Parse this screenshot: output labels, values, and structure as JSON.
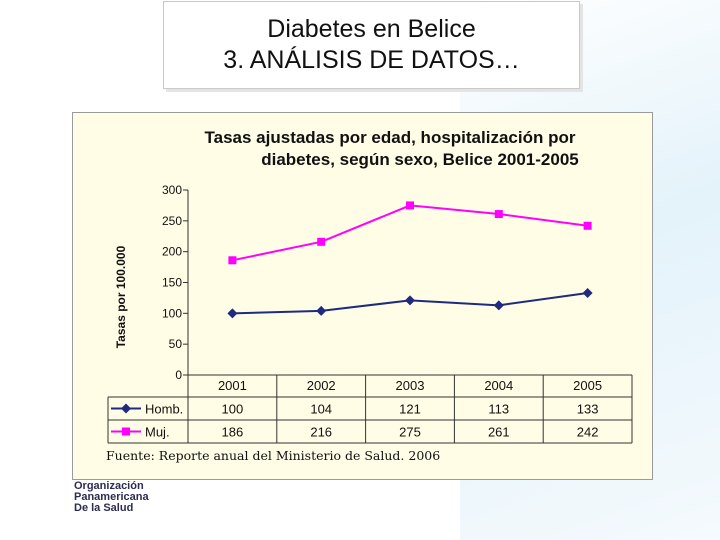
{
  "slide": {
    "title_line1": "Diabetes en Belice",
    "title_line2": "3. ANÁLISIS DE DATOS…",
    "source": "Fuente: Reporte anual del Ministerio de Salud. 2006",
    "logo_lines": [
      "Organización",
      "Panamericana",
      "De la Salud"
    ]
  },
  "colors": {
    "hombres": "#1f2a80",
    "mujeres": "#ff00ff",
    "panel": "#fffde6"
  },
  "chart_data": {
    "type": "line",
    "title_line1": "Tasas ajustadas por edad, hospitalización por",
    "title_line2": "diabetes, según sexo, Belice 2001-2005",
    "ylabel": "Tasas por 100.000",
    "xlabel": "",
    "ylim": [
      0,
      300
    ],
    "yticks": [
      0,
      50,
      100,
      150,
      200,
      250,
      300
    ],
    "categories": [
      "2001",
      "2002",
      "2003",
      "2004",
      "2005"
    ],
    "series": [
      {
        "name": "Homb.",
        "marker": "diamond",
        "values": [
          100,
          104,
          121,
          113,
          133
        ]
      },
      {
        "name": "Muj.",
        "marker": "square",
        "values": [
          186,
          216,
          275,
          261,
          242
        ]
      }
    ],
    "data_table": true,
    "grid": false
  }
}
